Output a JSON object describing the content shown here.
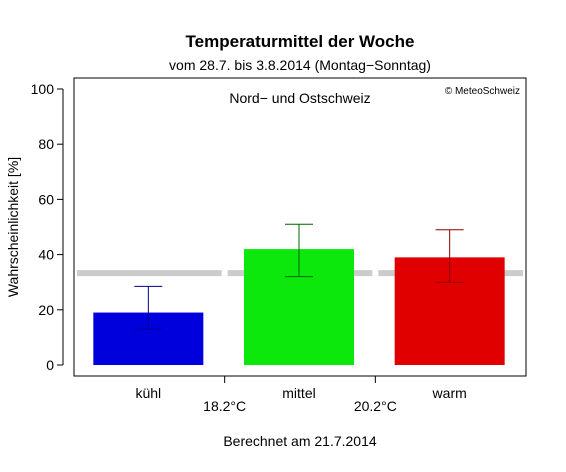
{
  "chart_data": {
    "type": "bar",
    "title": "Temperaturmittel der Woche",
    "subtitle": "vom 28.7. bis 3.8.2014 (Montag−Sonntag)",
    "panel_label": "Nord− und Ostschweiz",
    "copyright": "© MeteoSchweiz",
    "ylabel": "Wahrscheinlichkeit [%]",
    "footer": "Berechnet am 21.7.2014",
    "ylim": [
      0,
      100
    ],
    "yticks": [
      0,
      20,
      40,
      60,
      80,
      100
    ],
    "categories": [
      "kühl",
      "mittel",
      "warm"
    ],
    "values": [
      19,
      42,
      39
    ],
    "error_low": [
      13,
      32,
      30
    ],
    "error_high": [
      28.5,
      51,
      49
    ],
    "reference_value": 33.3,
    "thresholds": [
      "18.2°C",
      "20.2°C"
    ],
    "colors": {
      "bars": [
        "#0000dd",
        "#0ce80c",
        "#e00000"
      ],
      "errors": [
        "#00008b",
        "#006400",
        "#8b0000"
      ],
      "reference": "#cccccc"
    },
    "grid": false
  }
}
